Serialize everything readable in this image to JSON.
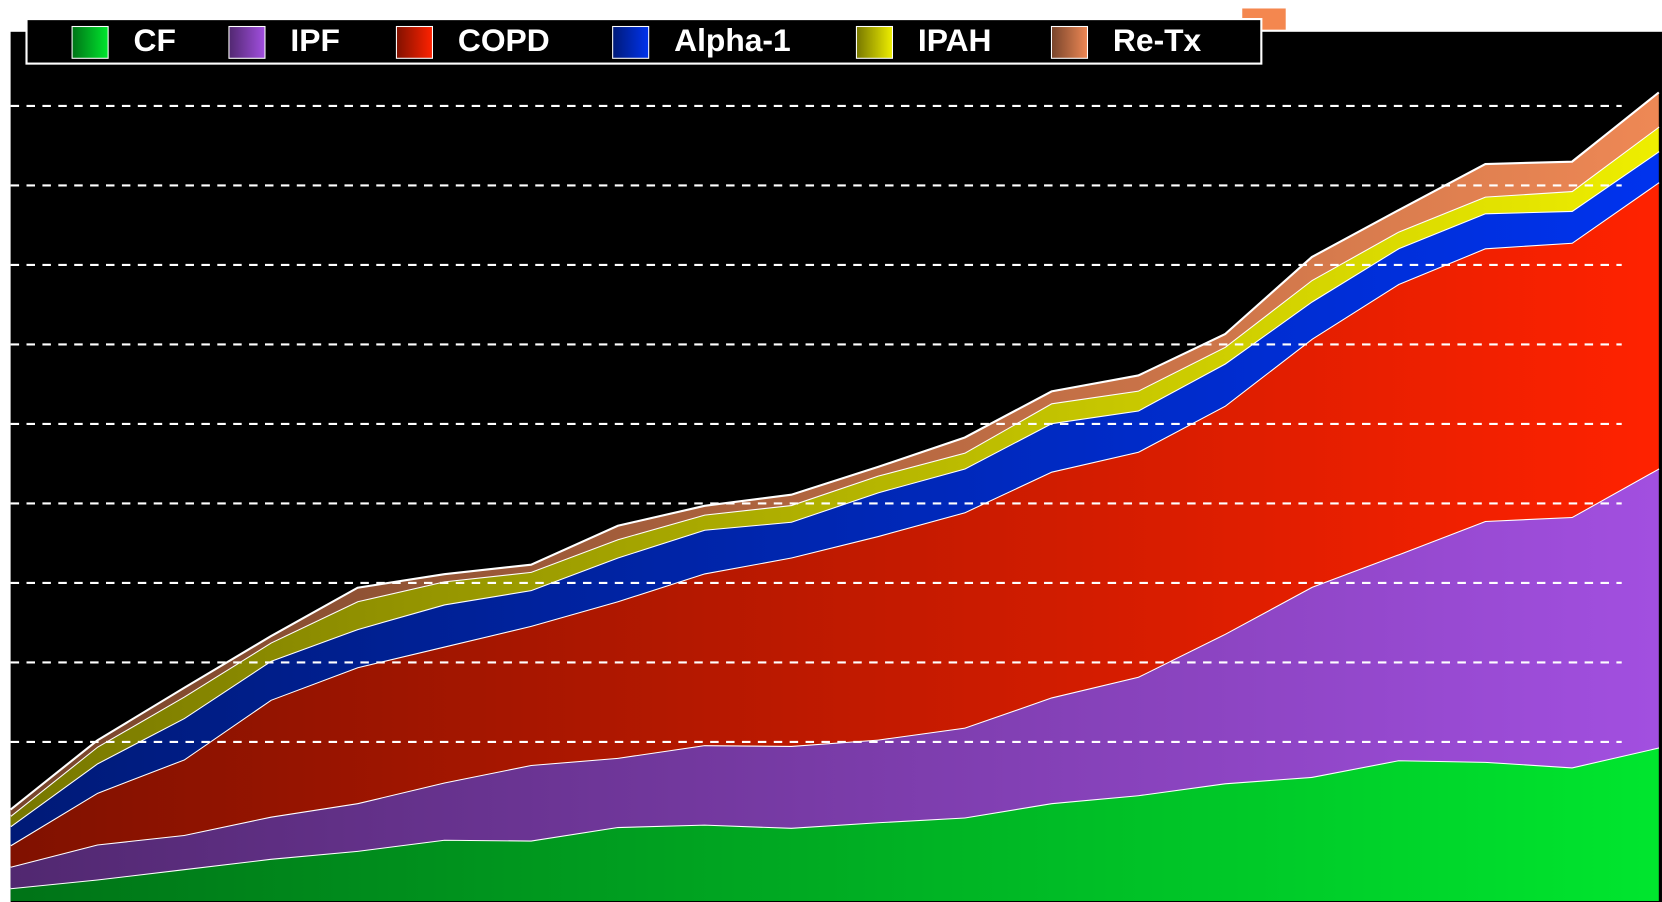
{
  "chart_data": {
    "type": "stacked-area",
    "categories": [
      null,
      null,
      null,
      null,
      null,
      null,
      null,
      null,
      null,
      null,
      null,
      null,
      null,
      null,
      null,
      null,
      null,
      null,
      null,
      null
    ],
    "series": [
      {
        "name": "CF",
        "color": "#00e62e",
        "values": [
          0.16,
          0.27,
          0.4,
          0.53,
          0.63,
          0.77,
          0.76,
          0.93,
          0.96,
          0.92,
          0.99,
          1.05,
          1.23,
          1.33,
          1.48,
          1.56,
          1.77,
          1.75,
          1.68,
          1.93
        ]
      },
      {
        "name": "IPF",
        "color": "#a24fe0",
        "values": [
          0.27,
          0.44,
          0.43,
          0.53,
          0.6,
          0.72,
          0.95,
          0.87,
          1.0,
          1.03,
          1.04,
          1.13,
          1.33,
          1.49,
          1.88,
          2.39,
          2.59,
          3.03,
          3.15,
          3.51
        ]
      },
      {
        "name": "COPD",
        "color": "#ff2200",
        "values": [
          0.27,
          0.65,
          0.95,
          1.47,
          1.71,
          1.71,
          1.75,
          1.97,
          2.16,
          2.37,
          2.56,
          2.71,
          2.84,
          2.83,
          2.87,
          3.12,
          3.4,
          3.43,
          3.45,
          3.6
        ]
      },
      {
        "name": "Alpha-1",
        "color": "#0033ee",
        "values": [
          0.24,
          0.37,
          0.52,
          0.49,
          0.48,
          0.53,
          0.45,
          0.55,
          0.55,
          0.45,
          0.55,
          0.55,
          0.61,
          0.52,
          0.53,
          0.47,
          0.45,
          0.44,
          0.4,
          0.39
        ]
      },
      {
        "name": "IPAH",
        "color": "#eeee00",
        "values": [
          0.13,
          0.21,
          0.27,
          0.23,
          0.35,
          0.29,
          0.23,
          0.23,
          0.19,
          0.21,
          0.21,
          0.2,
          0.25,
          0.25,
          0.21,
          0.27,
          0.21,
          0.21,
          0.25,
          0.31
        ]
      },
      {
        "name": "Re-Tx",
        "color": "#ee8855",
        "values": [
          0.08,
          0.08,
          0.11,
          0.08,
          0.17,
          0.09,
          0.09,
          0.17,
          0.11,
          0.13,
          0.11,
          0.19,
          0.15,
          0.19,
          0.16,
          0.29,
          0.27,
          0.41,
          0.37,
          0.43
        ]
      }
    ],
    "ylim": [
      0,
      11
    ],
    "yticks": [
      2,
      3,
      4,
      5,
      6,
      7,
      8,
      9,
      10
    ],
    "grid": true
  }
}
